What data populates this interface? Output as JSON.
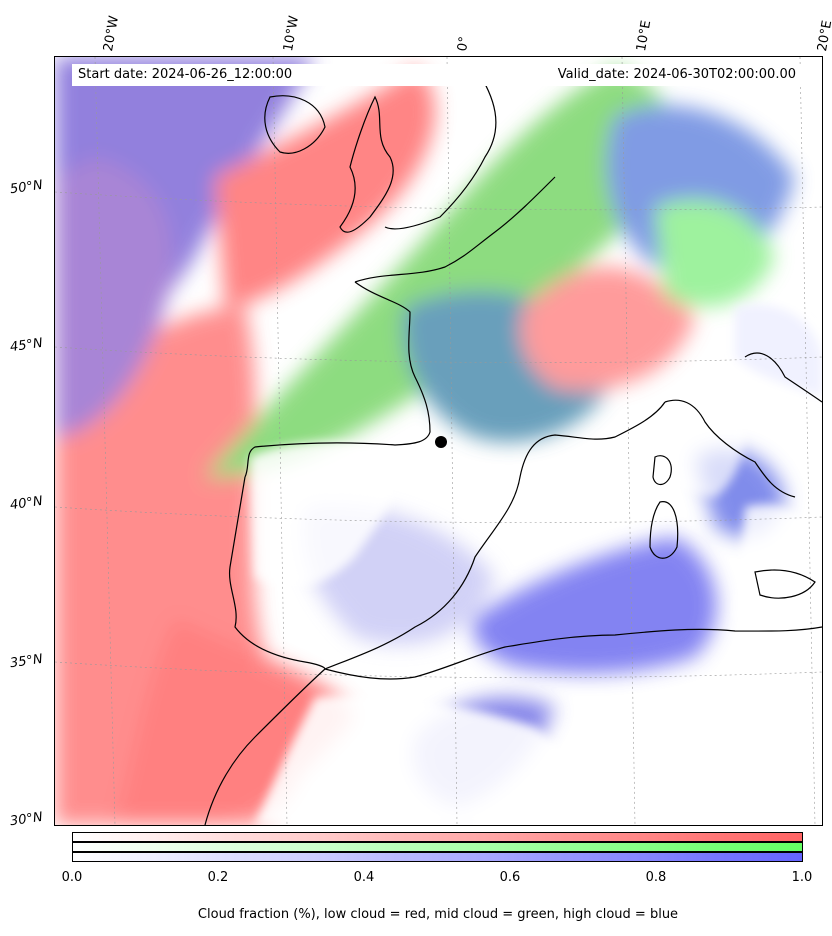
{
  "header": {
    "start_date": "Start date: 2024-06-26_12:00:00",
    "valid_date": "Valid_date: 2024-06-30T02:00:00.00"
  },
  "axes": {
    "longitudes": [
      "20°W",
      "10°W",
      "0°",
      "10°E",
      "20°E"
    ],
    "latitudes": [
      "50°N",
      "45°N",
      "40°N",
      "35°N",
      "30°N"
    ]
  },
  "colorbar": {
    "ticks": [
      "0.0",
      "0.2",
      "0.4",
      "0.6",
      "0.8",
      "1.0"
    ],
    "caption": "Cloud fraction (%), low cloud = red, mid cloud = green, high cloud = blue",
    "colors": {
      "low": "#ff6464",
      "mid": "#64ff64",
      "high": "#6464ff"
    }
  }
}
